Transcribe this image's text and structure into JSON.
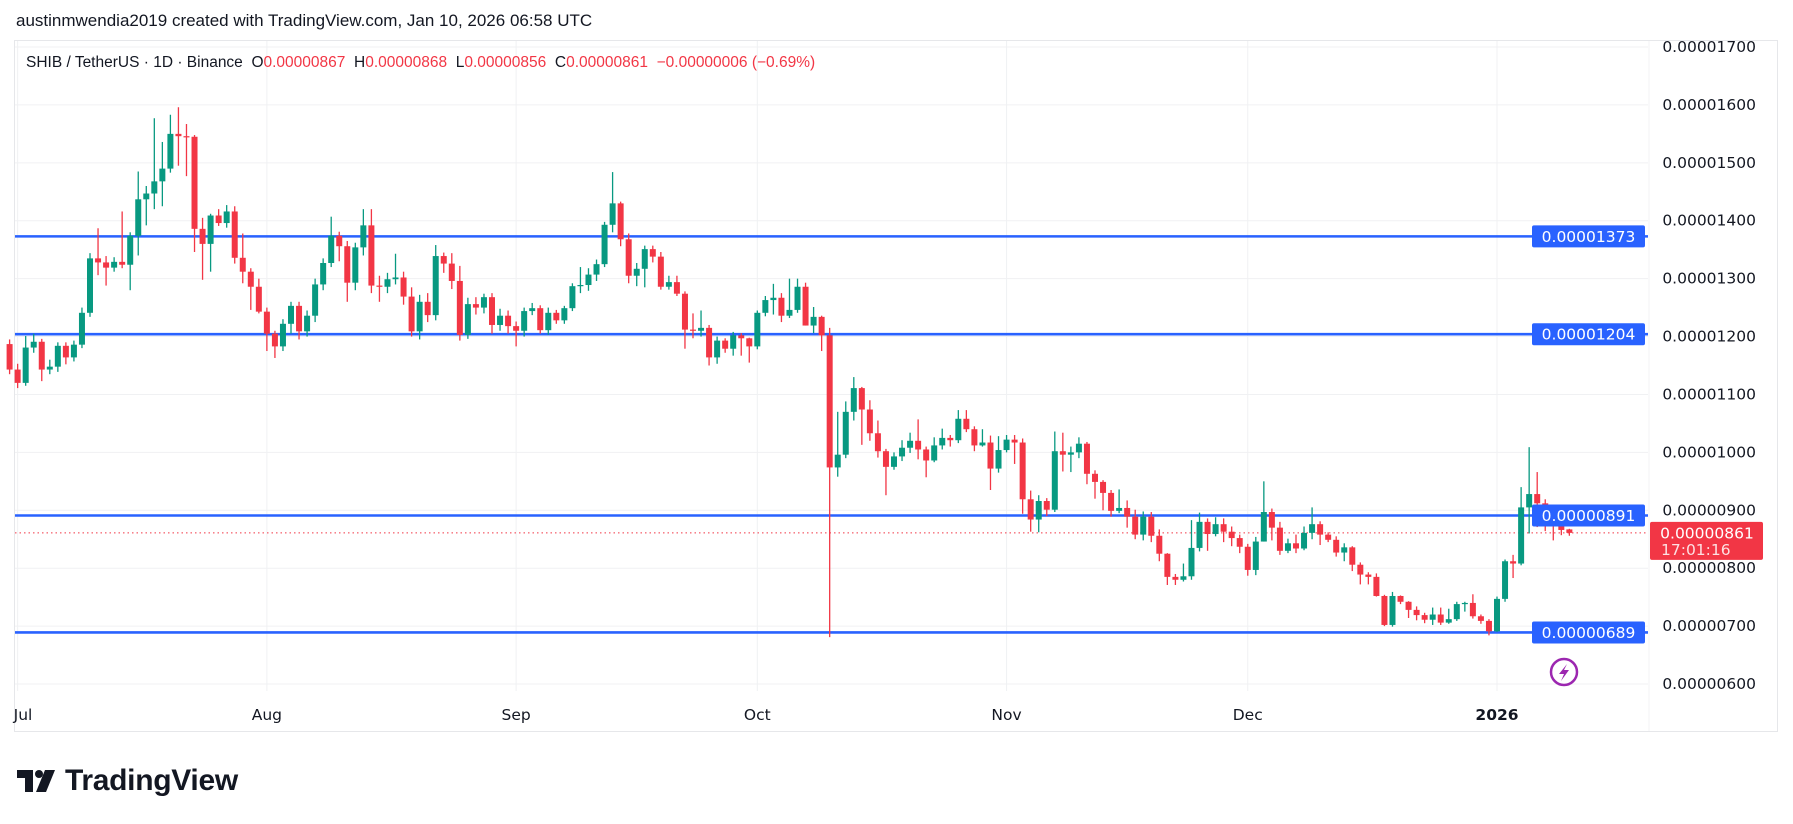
{
  "header": {
    "text": "austinmwendia2019 created with TradingView.com, Jan 10, 2026 06:58 UTC"
  },
  "legend": {
    "symbol": "SHIB / TetherUS · 1D · Binance",
    "o_label": "O",
    "o_value": "0.00000867",
    "h_label": "H",
    "h_value": "0.00000868",
    "l_label": "L",
    "l_value": "0.00000856",
    "c_label": "C",
    "c_value": "0.00000861",
    "change": "−0.00000006 (−0.69%)"
  },
  "logo": {
    "text": "TradingView"
  },
  "colors": {
    "up": "#089981",
    "down": "#f23645",
    "level_line": "#2962ff",
    "last_price": "#f23645",
    "grid": "#f0f1f3",
    "alert_icon": "#9c27b0"
  },
  "icons": {
    "alert": "lightning-bolt-icon"
  },
  "chart_data": {
    "type": "candlestick",
    "title": "SHIB / TetherUS · 1D · Binance",
    "x_ticks": [
      "Jul",
      "Aug",
      "Sep",
      "Oct",
      "Nov",
      "Dec",
      "2026"
    ],
    "y_ticks": [
      "0.00001700",
      "0.00001600",
      "0.00001500",
      "0.00001400",
      "0.00001300",
      "0.00001200",
      "0.00001100",
      "0.00001000",
      "0.00000900",
      "0.00000800",
      "0.00000700",
      "0.00000600"
    ],
    "ylim": [
      6e-06,
      1.7e-05
    ],
    "grid": true,
    "horizontal_levels": [
      {
        "value": 1.373e-05,
        "label": "0.00001373"
      },
      {
        "value": 1.204e-05,
        "label": "0.00001204"
      },
      {
        "value": 8.91e-06,
        "label": "0.00000891"
      },
      {
        "value": 6.89e-06,
        "label": "0.00000689"
      }
    ],
    "last_price": {
      "value": 8.61e-06,
      "label": "0.00000861",
      "countdown": "17:01:16"
    },
    "candle_fields": [
      "open",
      "high",
      "low",
      "close"
    ],
    "candles": [
      [
        1.187e-05,
        1.195e-05,
        1.135e-05,
        1.143e-05
      ],
      [
        1.143e-05,
        1.153e-05,
        1.111e-05,
        1.12e-05
      ],
      [
        1.12e-05,
        1.201e-05,
        1.115e-05,
        1.181e-05
      ],
      [
        1.181e-05,
        1.205e-05,
        1.172e-05,
        1.191e-05
      ],
      [
        1.191e-05,
        1.196e-05,
        1.123e-05,
        1.143e-05
      ],
      [
        1.143e-05,
        1.16e-05,
        1.135e-05,
        1.148e-05
      ],
      [
        1.148e-05,
        1.19e-05,
        1.139e-05,
        1.184e-05
      ],
      [
        1.184e-05,
        1.19e-05,
        1.152e-05,
        1.164e-05
      ],
      [
        1.164e-05,
        1.193e-05,
        1.157e-05,
        1.186e-05
      ],
      [
        1.186e-05,
        1.25e-05,
        1.18e-05,
        1.241e-05
      ],
      [
        1.241e-05,
        1.344e-05,
        1.234e-05,
        1.335e-05
      ],
      [
        1.335e-05,
        1.387e-05,
        1.306e-05,
        1.328e-05
      ],
      [
        1.328e-05,
        1.339e-05,
        1.288e-05,
        1.319e-05
      ],
      [
        1.319e-05,
        1.337e-05,
        1.312e-05,
        1.329e-05
      ],
      [
        1.329e-05,
        1.416e-05,
        1.318e-05,
        1.324e-05
      ],
      [
        1.324e-05,
        1.38e-05,
        1.28e-05,
        1.374e-05
      ],
      [
        1.374e-05,
        1.485e-05,
        1.34e-05,
        1.437e-05
      ],
      [
        1.437e-05,
        1.46e-05,
        1.392e-05,
        1.447e-05
      ],
      [
        1.447e-05,
        1.577e-05,
        1.42e-05,
        1.468e-05
      ],
      [
        1.468e-05,
        1.536e-05,
        1.425e-05,
        1.49e-05
      ],
      [
        1.49e-05,
        1.583e-05,
        1.483e-05,
        1.55e-05
      ],
      [
        1.55e-05,
        1.596e-05,
        1.495e-05,
        1.546e-05
      ],
      [
        1.546e-05,
        1.567e-05,
        1.477e-05,
        1.545e-05
      ],
      [
        1.545e-05,
        1.548e-05,
        1.346e-05,
        1.386e-05
      ],
      [
        1.386e-05,
        1.405e-05,
        1.298e-05,
        1.36e-05
      ],
      [
        1.36e-05,
        1.412e-05,
        1.312e-05,
        1.409e-05
      ],
      [
        1.409e-05,
        1.42e-05,
        1.391e-05,
        1.396e-05
      ],
      [
        1.396e-05,
        1.427e-05,
        1.388e-05,
        1.416e-05
      ],
      [
        1.416e-05,
        1.425e-05,
        1.326e-05,
        1.336e-05
      ],
      [
        1.336e-05,
        1.378e-05,
        1.292e-05,
        1.312e-05
      ],
      [
        1.312e-05,
        1.318e-05,
        1.246e-05,
        1.286e-05
      ],
      [
        1.286e-05,
        1.3e-05,
        1.24e-05,
        1.243e-05
      ],
      [
        1.243e-05,
        1.25e-05,
        1.175e-05,
        1.205e-05
      ],
      [
        1.205e-05,
        1.21e-05,
        1.163e-05,
        1.183e-05
      ],
      [
        1.183e-05,
        1.23e-05,
        1.175e-05,
        1.222e-05
      ],
      [
        1.222e-05,
        1.26e-05,
        1.205e-05,
        1.253e-05
      ],
      [
        1.253e-05,
        1.26e-05,
        1.195e-05,
        1.209e-05
      ],
      [
        1.209e-05,
        1.245e-05,
        1.2e-05,
        1.236e-05
      ],
      [
        1.236e-05,
        1.3e-05,
        1.225e-05,
        1.29e-05
      ],
      [
        1.29e-05,
        1.335e-05,
        1.28e-05,
        1.327e-05
      ],
      [
        1.327e-05,
        1.407e-05,
        1.32e-05,
        1.374e-05
      ],
      [
        1.374e-05,
        1.381e-05,
        1.33e-05,
        1.356e-05
      ],
      [
        1.356e-05,
        1.365e-05,
        1.26e-05,
        1.293e-05
      ],
      [
        1.293e-05,
        1.362e-05,
        1.28e-05,
        1.354e-05
      ],
      [
        1.354e-05,
        1.42e-05,
        1.34e-05,
        1.392e-05
      ],
      [
        1.392e-05,
        1.42e-05,
        1.275e-05,
        1.288e-05
      ],
      [
        1.288e-05,
        1.305e-05,
        1.26e-05,
        1.286e-05
      ],
      [
        1.286e-05,
        1.31e-05,
        1.275e-05,
        1.299e-05
      ],
      [
        1.299e-05,
        1.343e-05,
        1.29e-05,
        1.302e-05
      ],
      [
        1.302e-05,
        1.312e-05,
        1.255e-05,
        1.269e-05
      ],
      [
        1.269e-05,
        1.285e-05,
        1.2e-05,
        1.209e-05
      ],
      [
        1.209e-05,
        1.272e-05,
        1.195e-05,
        1.26e-05
      ],
      [
        1.26e-05,
        1.275e-05,
        1.225e-05,
        1.237e-05
      ],
      [
        1.237e-05,
        1.358e-05,
        1.228e-05,
        1.339e-05
      ],
      [
        1.339e-05,
        1.345e-05,
        1.31e-05,
        1.326e-05
      ],
      [
        1.326e-05,
        1.344e-05,
        1.282e-05,
        1.296e-05
      ],
      [
        1.296e-05,
        1.322e-05,
        1.193e-05,
        1.203e-05
      ],
      [
        1.203e-05,
        1.267e-05,
        1.196e-05,
        1.256e-05
      ],
      [
        1.256e-05,
        1.268e-05,
        1.238e-05,
        1.25e-05
      ],
      [
        1.25e-05,
        1.274e-05,
        1.24e-05,
        1.268e-05
      ],
      [
        1.268e-05,
        1.275e-05,
        1.205e-05,
        1.22e-05
      ],
      [
        1.22e-05,
        1.248e-05,
        1.21e-05,
        1.236e-05
      ],
      [
        1.236e-05,
        1.245e-05,
        1.205e-05,
        1.218e-05
      ],
      [
        1.218e-05,
        1.226e-05,
        1.183e-05,
        1.21e-05
      ],
      [
        1.21e-05,
        1.25e-05,
        1.2e-05,
        1.244e-05
      ],
      [
        1.244e-05,
        1.258e-05,
        1.237e-05,
        1.249e-05
      ],
      [
        1.249e-05,
        1.254e-05,
        1.205e-05,
        1.211e-05
      ],
      [
        1.211e-05,
        1.25e-05,
        1.203e-05,
        1.241e-05
      ],
      [
        1.241e-05,
        1.246e-05,
        1.222e-05,
        1.228e-05
      ],
      [
        1.228e-05,
        1.253e-05,
        1.222e-05,
        1.249e-05
      ],
      [
        1.249e-05,
        1.292e-05,
        1.244e-05,
        1.287e-05
      ],
      [
        1.287e-05,
        1.32e-05,
        1.275e-05,
        1.289e-05
      ],
      [
        1.289e-05,
        1.318e-05,
        1.279e-05,
        1.307e-05
      ],
      [
        1.307e-05,
        1.333e-05,
        1.296e-05,
        1.325e-05
      ],
      [
        1.325e-05,
        1.398e-05,
        1.32e-05,
        1.393e-05
      ],
      [
        1.393e-05,
        1.484e-05,
        1.38e-05,
        1.43e-05
      ],
      [
        1.43e-05,
        1.433e-05,
        1.356e-05,
        1.368e-05
      ],
      [
        1.368e-05,
        1.378e-05,
        1.292e-05,
        1.305e-05
      ],
      [
        1.305e-05,
        1.327e-05,
        1.287e-05,
        1.317e-05
      ],
      [
        1.317e-05,
        1.357e-05,
        1.285e-05,
        1.351e-05
      ],
      [
        1.351e-05,
        1.357e-05,
        1.328e-05,
        1.338e-05
      ],
      [
        1.338e-05,
        1.346e-05,
        1.281e-05,
        1.286e-05
      ],
      [
        1.286e-05,
        1.305e-05,
        1.281e-05,
        1.294e-05
      ],
      [
        1.294e-05,
        1.305e-05,
        1.27e-05,
        1.274e-05
      ],
      [
        1.274e-05,
        1.278e-05,
        1.179e-05,
        1.212e-05
      ],
      [
        1.212e-05,
        1.24e-05,
        1.197e-05,
        1.21e-05
      ],
      [
        1.21e-05,
        1.245e-05,
        1.2e-05,
        1.215e-05
      ],
      [
        1.215e-05,
        1.22e-05,
        1.15e-05,
        1.164e-05
      ],
      [
        1.164e-05,
        1.2e-05,
        1.153e-05,
        1.193e-05
      ],
      [
        1.193e-05,
        1.197e-05,
        1.172e-05,
        1.179e-05
      ],
      [
        1.179e-05,
        1.208e-05,
        1.167e-05,
        1.202e-05
      ],
      [
        1.202e-05,
        1.206e-05,
        1.167e-05,
        1.197e-05
      ],
      [
        1.197e-05,
        1.198e-05,
        1.155e-05,
        1.183e-05
      ],
      [
        1.183e-05,
        1.245e-05,
        1.178e-05,
        1.241e-05
      ],
      [
        1.241e-05,
        1.27e-05,
        1.235e-05,
        1.263e-05
      ],
      [
        1.263e-05,
        1.291e-05,
        1.238e-05,
        1.267e-05
      ],
      [
        1.267e-05,
        1.275e-05,
        1.225e-05,
        1.236e-05
      ],
      [
        1.236e-05,
        1.3e-05,
        1.232e-05,
        1.246e-05
      ],
      [
        1.246e-05,
        1.3e-05,
        1.241e-05,
        1.286e-05
      ],
      [
        1.286e-05,
        1.293e-05,
        1.219e-05,
        1.219e-05
      ],
      [
        1.219e-05,
        1.251e-05,
        1.206e-05,
        1.234e-05
      ],
      [
        1.234e-05,
        1.236e-05,
        1.175e-05,
        1.202e-05
      ],
      [
        1.202e-05,
        1.215e-05,
        6.81e-06,
        9.74e-06
      ],
      [
        9.74e-06,
        1.07e-05,
        9.58e-06,
        9.96e-06
      ],
      [
        9.96e-06,
        1.088e-05,
        9.9e-06,
        1.07e-05
      ],
      [
        1.07e-05,
        1.13e-05,
        1.055e-05,
        1.111e-05
      ],
      [
        1.111e-05,
        1.113e-05,
        1.013e-05,
        1.074e-05
      ],
      [
        1.074e-05,
        1.09e-05,
        1.02e-05,
        1.033e-05
      ],
      [
        1.033e-05,
        1.055e-05,
        9.91e-06,
        1.002e-05
      ],
      [
        1.002e-05,
        1.006e-05,
        9.26e-06,
        9.75e-06
      ],
      [
        9.75e-06,
        1e-05,
        9.7e-06,
        9.93e-06
      ],
      [
        9.93e-06,
        1.021e-05,
        9.85e-06,
        1.008e-05
      ],
      [
        1.008e-05,
        1.034e-05,
        9.99e-06,
        1.02e-05
      ],
      [
        1.02e-05,
        1.057e-05,
        9.88e-06,
        1.005e-05
      ],
      [
        1.005e-05,
        1.01e-05,
        9.57e-06,
        9.86e-06
      ],
      [
        9.86e-06,
        1.026e-05,
        9.83e-06,
        1.012e-05
      ],
      [
        1.012e-05,
        1.041e-05,
        1.005e-05,
        1.025e-05
      ],
      [
        1.025e-05,
        1.03e-05,
        1.01e-05,
        1.021e-05
      ],
      [
        1.021e-05,
        1.073e-05,
        1.016e-05,
        1.058e-05
      ],
      [
        1.058e-05,
        1.073e-05,
        1.035e-05,
        1.04e-05
      ],
      [
        1.04e-05,
        1.045e-05,
        1.002e-05,
        1.012e-05
      ],
      [
        1.012e-05,
        1.04e-05,
        1.01e-05,
        1.017e-05
      ],
      [
        1.017e-05,
        1.029e-05,
        9.35e-06,
        9.72e-06
      ],
      [
        9.72e-06,
        1.028e-05,
        9.65e-06,
        1.004e-05
      ],
      [
        1.004e-05,
        1.03e-05,
        1e-05,
        1.022e-05
      ],
      [
        1.022e-05,
        1.03e-05,
        9.8e-06,
        1.017e-05
      ],
      [
        1.017e-05,
        1.024e-05,
        8.94e-06,
        9.19e-06
      ],
      [
        9.19e-06,
        9.34e-06,
        8.63e-06,
        8.84e-06
      ],
      [
        8.84e-06,
        9.26e-06,
        8.62e-06,
        9.16e-06
      ],
      [
        9.16e-06,
        9.21e-06,
        8.9e-06,
        9.01e-06
      ],
      [
        9.01e-06,
        1.036e-05,
        8.97e-06,
        1.002e-05
      ],
      [
        1.002e-05,
        1.034e-05,
        9.67e-06,
        9.96e-06
      ],
      [
        9.96e-06,
        1.01e-05,
        9.66e-06,
        1e-05
      ],
      [
        1e-05,
        1.026e-05,
        9.9e-06,
        1.015e-05
      ],
      [
        1.015e-05,
        1.018e-05,
        9.45e-06,
        9.63e-06
      ],
      [
        9.63e-06,
        9.69e-06,
        9.2e-06,
        9.49e-06
      ],
      [
        9.49e-06,
        9.52e-06,
        9e-06,
        9.3e-06
      ],
      [
        9.3e-06,
        9.35e-06,
        8.89e-06,
        8.99e-06
      ],
      [
        8.99e-06,
        9.36e-06,
        8.95e-06,
        9.04e-06
      ],
      [
        9.04e-06,
        9.17e-06,
        8.7e-06,
        8.89e-06
      ],
      [
        8.89e-06,
        9.01e-06,
        8.5e-06,
        8.58e-06
      ],
      [
        8.58e-06,
        8.98e-06,
        8.48e-06,
        8.89e-06
      ],
      [
        8.89e-06,
        8.97e-06,
        8.45e-06,
        8.56e-06
      ],
      [
        8.56e-06,
        8.67e-06,
        8.12e-06,
        8.25e-06
      ],
      [
        8.25e-06,
        8.26e-06,
        7.71e-06,
        7.85e-06
      ],
      [
        7.85e-06,
        7.9e-06,
        7.71e-06,
        7.8e-06
      ],
      [
        7.8e-06,
        8.08e-06,
        7.77e-06,
        7.86e-06
      ],
      [
        7.86e-06,
        8.83e-06,
        7.8e-06,
        8.35e-06
      ],
      [
        8.35e-06,
        8.96e-06,
        8.29e-06,
        8.8e-06
      ],
      [
        8.8e-06,
        8.86e-06,
        8.3e-06,
        8.59e-06
      ],
      [
        8.59e-06,
        8.88e-06,
        8.55e-06,
        8.76e-06
      ],
      [
        8.76e-06,
        8.86e-06,
        8.45e-06,
        8.63e-06
      ],
      [
        8.63e-06,
        8.72e-06,
        8.38e-06,
        8.52e-06
      ],
      [
        8.52e-06,
        8.58e-06,
        8.26e-06,
        8.37e-06
      ],
      [
        8.37e-06,
        8.42e-06,
        7.87e-06,
        7.97e-06
      ],
      [
        7.97e-06,
        8.54e-06,
        7.88e-06,
        8.46e-06
      ],
      [
        8.46e-06,
        9.5e-06,
        8.46e-06,
        8.97e-06
      ],
      [
        8.97e-06,
        9.03e-06,
        8.48e-06,
        8.7e-06
      ],
      [
        8.7e-06,
        8.8e-06,
        8.23e-06,
        8.3e-06
      ],
      [
        8.3e-06,
        8.51e-06,
        8.26e-06,
        8.43e-06
      ],
      [
        8.43e-06,
        8.58e-06,
        8.26e-06,
        8.34e-06
      ],
      [
        8.34e-06,
        8.72e-06,
        8.31e-06,
        8.61e-06
      ],
      [
        8.61e-06,
        9.05e-06,
        8.5e-06,
        8.76e-06
      ],
      [
        8.76e-06,
        8.81e-06,
        8.4e-06,
        8.58e-06
      ],
      [
        8.58e-06,
        8.62e-06,
        8.45e-06,
        8.49e-06
      ],
      [
        8.49e-06,
        8.55e-06,
        8.2e-06,
        8.27e-06
      ],
      [
        8.27e-06,
        8.43e-06,
        8.12e-06,
        8.36e-06
      ],
      [
        8.36e-06,
        8.38e-06,
        7.95e-06,
        8.06e-06
      ],
      [
        8.06e-06,
        8.1e-06,
        7.72e-06,
        7.89e-06
      ],
      [
        7.89e-06,
        7.93e-06,
        7.72e-06,
        7.85e-06
      ],
      [
        7.85e-06,
        7.91e-06,
        7.51e-06,
        7.52e-06
      ],
      [
        7.52e-06,
        7.54e-06,
        7e-06,
        7.02e-06
      ],
      [
        7.02e-06,
        7.59e-06,
        6.99e-06,
        7.52e-06
      ],
      [
        7.52e-06,
        7.53e-06,
        7.38e-06,
        7.42e-06
      ],
      [
        7.42e-06,
        7.43e-06,
        7.14e-06,
        7.28e-06
      ],
      [
        7.28e-06,
        7.34e-06,
        7.1e-06,
        7.19e-06
      ],
      [
        7.19e-06,
        7.23e-06,
        7.05e-06,
        7.11e-06
      ],
      [
        7.11e-06,
        7.32e-06,
        7.02e-06,
        7.2e-06
      ],
      [
        7.2e-06,
        7.32e-06,
        7.02e-06,
        7.06e-06
      ],
      [
        7.06e-06,
        7.3e-06,
        7.04e-06,
        7.12e-06
      ],
      [
        7.12e-06,
        7.42e-06,
        7.09e-06,
        7.38e-06
      ],
      [
        7.38e-06,
        7.42e-06,
        7.25e-06,
        7.4e-06
      ],
      [
        7.4e-06,
        7.55e-06,
        7.13e-06,
        7.17e-06
      ],
      [
        7.17e-06,
        7.2e-06,
        7.04e-06,
        7.09e-06
      ],
      [
        7.09e-06,
        7.12e-06,
        6.84e-06,
        6.91e-06
      ],
      [
        6.91e-06,
        7.51e-06,
        6.9e-06,
        7.47e-06
      ],
      [
        7.47e-06,
        8.15e-06,
        7.42e-06,
        8.12e-06
      ],
      [
        8.12e-06,
        8.23e-06,
        7.83e-06,
        8.08e-06
      ],
      [
        8.08e-06,
        9.4e-06,
        8.05e-06,
        9.05e-06
      ],
      [
        9.05e-06,
        1.009e-05,
        8.6e-06,
        9.28e-06
      ],
      [
        9.28e-06,
        9.66e-06,
        8.71e-06,
        9.12e-06
      ],
      [
        9.12e-06,
        9.19e-06,
        8.64e-06,
        8.78e-06
      ],
      [
        8.78e-06,
        8.89e-06,
        8.48e-06,
        8.75e-06
      ],
      [
        8.75e-06,
        8.89e-06,
        8.57e-06,
        8.66e-06
      ],
      [
        8.67e-06,
        8.68e-06,
        8.56e-06,
        8.61e-06
      ]
    ]
  }
}
